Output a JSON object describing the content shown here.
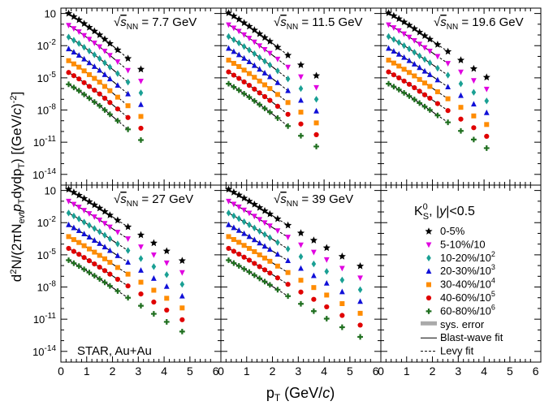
{
  "chart_data": {
    "type": "scatter",
    "yscale": "log",
    "xlabel": "p_T (GeV/c)",
    "ylabel": "d²N/(2πN_evt p_T dy dp_T) [(GeV/c)^-2]",
    "xlim": [
      0,
      6.2
    ],
    "ylim": [
      -15,
      1.5
    ],
    "ylim_note": "log10 of y",
    "x_ticks": [
      "0",
      "1",
      "2",
      "3",
      "4",
      "5",
      "6"
    ],
    "y_ticks": [
      "10",
      "10^-2",
      "10^-5",
      "10^-8",
      "10^-11",
      "10^-14"
    ],
    "experiment_label": "STAR, Au+Au",
    "legend": {
      "title": "K_S^0, |y|<0.5",
      "entries": [
        "0-5%",
        "5-10%/10",
        "10-20%/10^2",
        "20-30%/10^3",
        "30-40%/10^4",
        "40-60%/10^5",
        "60-80%/10^6"
      ],
      "extra": [
        "sys. error",
        "Blast-wave fit",
        "Levy fit"
      ]
    },
    "series_colors": [
      "#000000",
      "#e000e0",
      "#1aa094",
      "#1010d8",
      "#ff8c00",
      "#e00000",
      "#1f6f1f"
    ],
    "series_markers": [
      "star",
      "triangle-down",
      "diamond",
      "triangle-up",
      "square",
      "circle",
      "cross"
    ],
    "panels": [
      {
        "energy": "7.7 GeV",
        "pt": [
          0.3,
          0.5,
          0.7,
          0.9,
          1.1,
          1.3,
          1.5,
          1.7,
          1.9,
          2.2,
          2.6,
          3.1
        ],
        "log10_y": [
          [
            1.0,
            0.7,
            0.4,
            0.05,
            -0.3,
            -0.65,
            -1.0,
            -1.4,
            -1.8,
            -2.4,
            -3.2,
            -4.2
          ],
          [
            -0.1,
            -0.4,
            -0.7,
            -1.05,
            -1.4,
            -1.75,
            -2.1,
            -2.5,
            -2.9,
            -3.5,
            -4.3,
            -5.3
          ],
          [
            -1.2,
            -1.5,
            -1.8,
            -2.15,
            -2.5,
            -2.85,
            -3.2,
            -3.6,
            -4.0,
            -4.6,
            -5.4,
            -6.4
          ],
          [
            -2.3,
            -2.6,
            -2.9,
            -3.25,
            -3.6,
            -3.95,
            -4.3,
            -4.7,
            -5.1,
            -5.7,
            -6.5,
            -7.5
          ],
          [
            -3.4,
            -3.7,
            -4.0,
            -4.35,
            -4.7,
            -5.05,
            -5.4,
            -5.8,
            -6.2,
            -6.8,
            -7.6,
            -8.6
          ],
          [
            -4.5,
            -4.8,
            -5.1,
            -5.45,
            -5.8,
            -6.15,
            -6.5,
            -6.9,
            -7.3,
            -7.9,
            -8.7,
            -9.7
          ],
          [
            -5.6,
            -5.9,
            -6.2,
            -6.55,
            -6.9,
            -7.25,
            -7.6,
            -8.0,
            -8.4,
            -9.0,
            -9.8,
            -10.8
          ]
        ]
      },
      {
        "energy": "11.5 GeV",
        "pt": [
          0.3,
          0.5,
          0.7,
          0.9,
          1.1,
          1.3,
          1.5,
          1.7,
          1.9,
          2.2,
          2.6,
          3.1,
          3.7
        ],
        "log10_y": [
          [
            1.05,
            0.75,
            0.45,
            0.12,
            -0.2,
            -0.55,
            -0.9,
            -1.25,
            -1.6,
            -2.15,
            -2.9,
            -3.8,
            -4.8
          ],
          [
            -0.05,
            -0.35,
            -0.65,
            -0.98,
            -1.3,
            -1.65,
            -2.0,
            -2.35,
            -2.7,
            -3.25,
            -4.0,
            -4.9,
            -5.9
          ],
          [
            -1.15,
            -1.45,
            -1.75,
            -2.08,
            -2.4,
            -2.75,
            -3.1,
            -3.45,
            -3.8,
            -4.35,
            -5.1,
            -6.0,
            -7.0
          ],
          [
            -2.25,
            -2.55,
            -2.85,
            -3.18,
            -3.5,
            -3.85,
            -4.2,
            -4.55,
            -4.9,
            -5.45,
            -6.2,
            -7.1,
            -8.1
          ],
          [
            -3.35,
            -3.65,
            -3.95,
            -4.28,
            -4.6,
            -4.95,
            -5.3,
            -5.65,
            -6.0,
            -6.55,
            -7.3,
            -8.2,
            -9.2
          ],
          [
            -4.45,
            -4.75,
            -5.05,
            -5.38,
            -5.7,
            -6.05,
            -6.4,
            -6.75,
            -7.1,
            -7.65,
            -8.4,
            -9.3,
            -10.3
          ],
          [
            -5.55,
            -5.85,
            -6.15,
            -6.48,
            -6.8,
            -7.15,
            -7.5,
            -7.85,
            -8.2,
            -8.75,
            -9.5,
            -10.4,
            -11.4
          ]
        ]
      },
      {
        "energy": "19.6 GeV",
        "pt": [
          0.3,
          0.5,
          0.7,
          0.9,
          1.1,
          1.3,
          1.5,
          1.7,
          1.9,
          2.2,
          2.6,
          3.1,
          3.6,
          4.1
        ],
        "log10_y": [
          [
            1.05,
            0.78,
            0.5,
            0.2,
            -0.1,
            -0.42,
            -0.75,
            -1.08,
            -1.4,
            -1.9,
            -2.55,
            -3.35,
            -4.15,
            -4.95
          ],
          [
            -0.05,
            -0.32,
            -0.6,
            -0.9,
            -1.2,
            -1.52,
            -1.85,
            -2.18,
            -2.5,
            -3.0,
            -3.65,
            -4.45,
            -5.25,
            -6.05
          ],
          [
            -1.15,
            -1.42,
            -1.7,
            -2.0,
            -2.3,
            -2.62,
            -2.95,
            -3.28,
            -3.6,
            -4.1,
            -4.75,
            -5.55,
            -6.35,
            -7.15
          ],
          [
            -2.25,
            -2.52,
            -2.8,
            -3.1,
            -3.4,
            -3.72,
            -4.05,
            -4.38,
            -4.7,
            -5.2,
            -5.85,
            -6.65,
            -7.45,
            -8.25
          ],
          [
            -3.35,
            -3.62,
            -3.9,
            -4.2,
            -4.5,
            -4.82,
            -5.15,
            -5.48,
            -5.8,
            -6.3,
            -6.95,
            -7.75,
            -8.55,
            -9.35
          ],
          [
            -4.45,
            -4.72,
            -5.0,
            -5.3,
            -5.6,
            -5.92,
            -6.25,
            -6.58,
            -6.9,
            -7.4,
            -8.05,
            -8.85,
            -9.65,
            -10.45
          ],
          [
            -5.55,
            -5.82,
            -6.1,
            -6.4,
            -6.7,
            -7.02,
            -7.35,
            -7.68,
            -8.0,
            -8.5,
            -9.15,
            -9.95,
            -10.75,
            -11.55
          ]
        ]
      },
      {
        "energy": "27 GeV",
        "pt": [
          0.3,
          0.5,
          0.7,
          0.9,
          1.1,
          1.3,
          1.5,
          1.7,
          1.9,
          2.2,
          2.6,
          3.1,
          3.6,
          4.1,
          4.7
        ],
        "log10_y": [
          [
            1.1,
            0.82,
            0.55,
            0.25,
            -0.05,
            -0.35,
            -0.65,
            -0.97,
            -1.3,
            -1.78,
            -2.4,
            -3.15,
            -3.9,
            -4.65,
            -5.55
          ],
          [
            0.0,
            -0.28,
            -0.55,
            -0.85,
            -1.15,
            -1.45,
            -1.75,
            -2.07,
            -2.4,
            -2.88,
            -3.5,
            -4.25,
            -5.0,
            -5.75,
            -6.65
          ],
          [
            -1.1,
            -1.38,
            -1.65,
            -1.95,
            -2.25,
            -2.55,
            -2.85,
            -3.17,
            -3.5,
            -3.98,
            -4.6,
            -5.35,
            -6.1,
            -6.85,
            -7.75
          ],
          [
            -2.2,
            -2.48,
            -2.75,
            -3.05,
            -3.35,
            -3.65,
            -3.95,
            -4.27,
            -4.6,
            -5.08,
            -5.7,
            -6.45,
            -7.2,
            -7.95,
            -8.85
          ],
          [
            -3.3,
            -3.58,
            -3.85,
            -4.15,
            -4.45,
            -4.75,
            -5.05,
            -5.37,
            -5.7,
            -6.18,
            -6.8,
            -7.55,
            -8.3,
            -9.05,
            -9.95
          ],
          [
            -4.4,
            -4.68,
            -4.95,
            -5.25,
            -5.55,
            -5.85,
            -6.15,
            -6.47,
            -6.8,
            -7.28,
            -7.9,
            -8.65,
            -9.4,
            -10.15,
            -11.05
          ],
          [
            -5.5,
            -5.78,
            -6.05,
            -6.35,
            -6.65,
            -6.95,
            -7.25,
            -7.57,
            -7.9,
            -8.38,
            -9.0,
            -9.75,
            -10.5,
            -11.25,
            -12.15
          ]
        ]
      },
      {
        "energy": "39 GeV",
        "pt": [
          0.3,
          0.5,
          0.7,
          0.9,
          1.1,
          1.3,
          1.5,
          1.7,
          1.9,
          2.2,
          2.6,
          3.1,
          3.6,
          4.1,
          4.7,
          5.4
        ],
        "log10_y": [
          [
            1.1,
            0.83,
            0.57,
            0.28,
            0.0,
            -0.3,
            -0.6,
            -0.9,
            -1.2,
            -1.65,
            -2.25,
            -2.97,
            -3.65,
            -4.35,
            -5.15,
            -6.05
          ],
          [
            0.0,
            -0.27,
            -0.53,
            -0.82,
            -1.1,
            -1.4,
            -1.7,
            -2.0,
            -2.3,
            -2.75,
            -3.35,
            -4.07,
            -4.75,
            -5.45,
            -6.25,
            -7.15
          ],
          [
            -1.1,
            -1.37,
            -1.63,
            -1.92,
            -2.2,
            -2.5,
            -2.8,
            -3.1,
            -3.4,
            -3.85,
            -4.45,
            -5.17,
            -5.85,
            -6.55,
            -7.35,
            -8.25
          ],
          [
            -2.2,
            -2.47,
            -2.73,
            -3.02,
            -3.3,
            -3.6,
            -3.9,
            -4.2,
            -4.5,
            -4.95,
            -5.55,
            -6.27,
            -6.95,
            -7.65,
            -8.45,
            -9.35
          ],
          [
            -3.3,
            -3.57,
            -3.83,
            -4.12,
            -4.4,
            -4.7,
            -5.0,
            -5.3,
            -5.6,
            -6.05,
            -6.65,
            -7.37,
            -8.05,
            -8.75,
            -9.55,
            -10.45
          ],
          [
            -4.4,
            -4.67,
            -4.93,
            -5.22,
            -5.5,
            -5.8,
            -6.1,
            -6.4,
            -6.7,
            -7.15,
            -7.75,
            -8.47,
            -9.15,
            -9.85,
            -10.65,
            -11.55
          ],
          [
            -5.5,
            -5.77,
            -6.03,
            -6.32,
            -6.6,
            -6.9,
            -7.2,
            -7.5,
            -7.8,
            -8.25,
            -8.85,
            -9.57,
            -10.25,
            -10.95,
            -11.75,
            -12.65
          ]
        ]
      }
    ]
  }
}
